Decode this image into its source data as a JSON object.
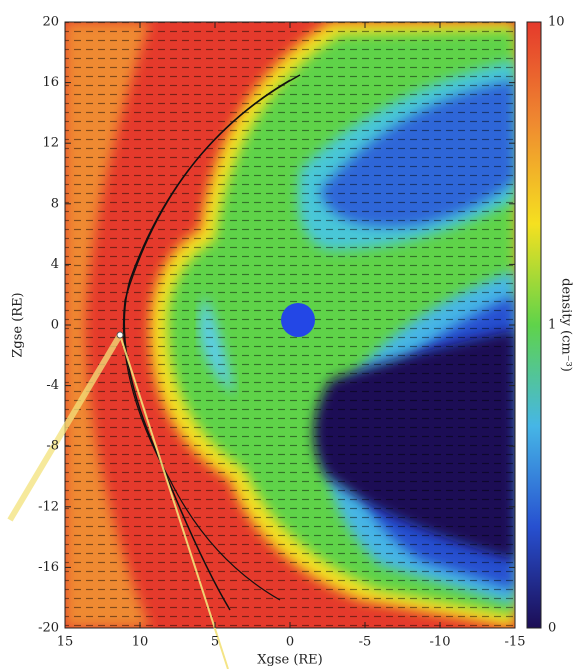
{
  "chart_data": {
    "type": "density-map",
    "x_label": "Xgse (RE)",
    "y_label": "Zgse (RE)",
    "xlim": [
      15,
      -15
    ],
    "xticks": [
      15,
      10,
      5,
      0,
      -5,
      -10,
      -15
    ],
    "ylim": [
      -20,
      20
    ],
    "yticks": [
      -20,
      -16,
      -12,
      -8,
      -4,
      0,
      4,
      8,
      12,
      16,
      20
    ],
    "colorbar_label": "density (cm⁻³)",
    "colorbar_ticks": [
      "0",
      "1",
      "10"
    ],
    "colors": [
      "#1c0d55",
      "#2750d0",
      "#46b6e6",
      "#5fd34a",
      "#f5e020",
      "#ef8a30",
      "#e53a2c"
    ]
  }
}
